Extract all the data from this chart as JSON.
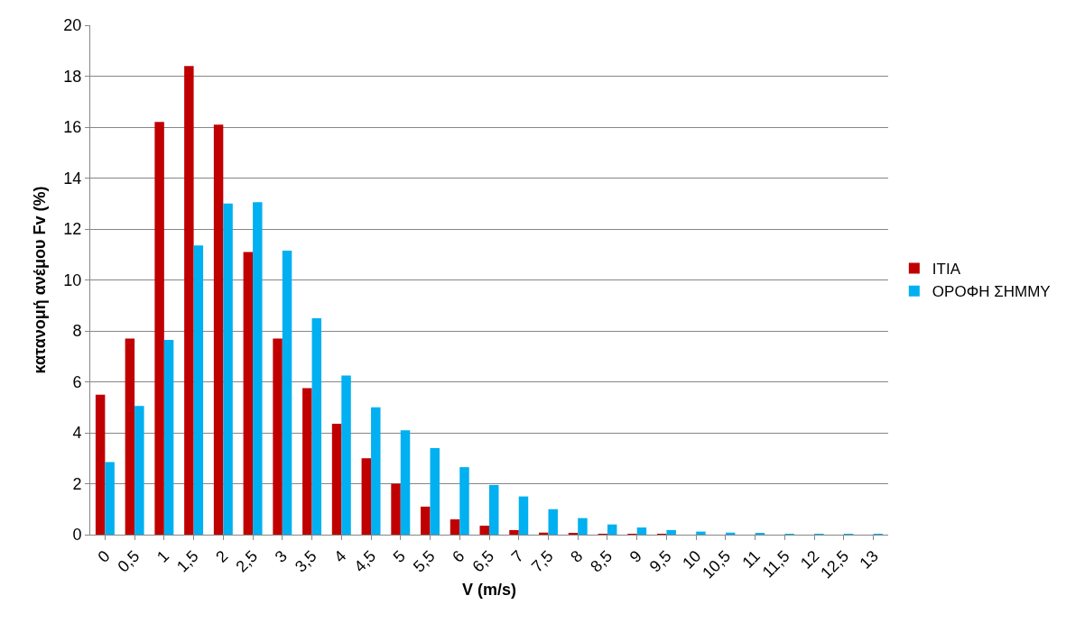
{
  "chart_data": {
    "type": "bar",
    "xlabel": "V (m/s)",
    "ylabel": "κατανομή ανέμου Fv (%)",
    "categories": [
      "0",
      "0,5",
      "1",
      "1,5",
      "2",
      "2,5",
      "3",
      "3,5",
      "4",
      "4,5",
      "5",
      "5,5",
      "6",
      "6,5",
      "7",
      "7,5",
      "8",
      "8,5",
      "9",
      "9,5",
      "10",
      "10,5",
      "11",
      "11,5",
      "12",
      "12,5",
      "13"
    ],
    "series": [
      {
        "name": "ITIA",
        "color": "#c00000",
        "values": [
          5.5,
          7.7,
          16.2,
          18.4,
          16.1,
          11.1,
          7.7,
          5.75,
          4.35,
          3.0,
          2.0,
          1.1,
          0.6,
          0.35,
          0.18,
          0.08,
          0.05,
          0.03,
          0.02,
          0.01,
          0,
          0,
          0,
          0,
          0,
          0,
          0
        ]
      },
      {
        "name": "ΟΡΟΦΗ ΣΗΜΜΥ",
        "color": "#00b0f0",
        "values": [
          2.85,
          5.05,
          7.65,
          11.35,
          13.0,
          13.05,
          11.15,
          8.5,
          6.25,
          5.0,
          4.1,
          3.4,
          2.65,
          1.95,
          1.5,
          1.0,
          0.65,
          0.4,
          0.28,
          0.18,
          0.12,
          0.08,
          0.04,
          0.03,
          0.02,
          0.01,
          0.01
        ]
      }
    ],
    "ylim": [
      0,
      20
    ],
    "yticks": [
      0,
      2,
      4,
      6,
      8,
      10,
      12,
      14,
      16,
      18,
      20
    ],
    "grid": "y",
    "legend": "right"
  }
}
